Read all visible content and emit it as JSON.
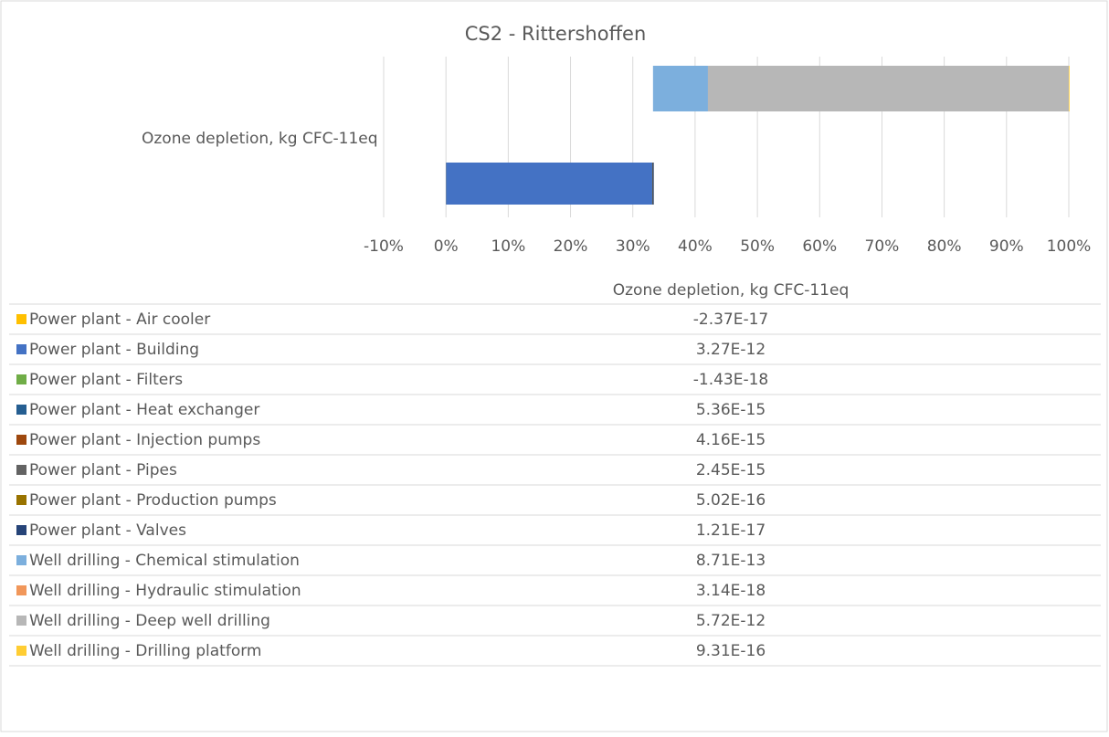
{
  "chart_data": {
    "type": "waterfall",
    "title": "CS2 - Rittershoffen",
    "categories": [
      "Ozone depletion, kg CFC-11eq"
    ],
    "xlim": [
      -10,
      100
    ],
    "xticks": [
      {
        "value": -10,
        "label": "-10%"
      },
      {
        "value": 0,
        "label": "0%"
      },
      {
        "value": 10,
        "label": "10%"
      },
      {
        "value": 20,
        "label": "20%"
      },
      {
        "value": 30,
        "label": "30%"
      },
      {
        "value": 40,
        "label": "40%"
      },
      {
        "value": 50,
        "label": "50%"
      },
      {
        "value": 60,
        "label": "60%"
      },
      {
        "value": 70,
        "label": "70%"
      },
      {
        "value": 80,
        "label": "80%"
      },
      {
        "value": 90,
        "label": "90%"
      },
      {
        "value": 100,
        "label": "100%"
      }
    ],
    "grid": true,
    "series": [
      {
        "name": "Power plant - Air cooler",
        "color": "#ffc000",
        "values": [
          -2.37e-17
        ],
        "value_labels": [
          "-2.37E-17"
        ]
      },
      {
        "name": "Power plant - Building",
        "color": "#4472c4",
        "values": [
          3.27e-12
        ],
        "value_labels": [
          "3.27E-12"
        ]
      },
      {
        "name": "Power plant - Filters",
        "color": "#70ad47",
        "values": [
          -1.43e-18
        ],
        "value_labels": [
          "-1.43E-18"
        ]
      },
      {
        "name": "Power plant - Heat exchanger",
        "color": "#255e91",
        "values": [
          5.36e-15
        ],
        "value_labels": [
          "5.36E-15"
        ]
      },
      {
        "name": "Power plant - Injection pumps",
        "color": "#9e480e",
        "values": [
          4.16e-15
        ],
        "value_labels": [
          "4.16E-15"
        ]
      },
      {
        "name": "Power plant - Pipes",
        "color": "#636363",
        "values": [
          2.45e-15
        ],
        "value_labels": [
          "2.45E-15"
        ]
      },
      {
        "name": "Power plant - Production pumps",
        "color": "#997300",
        "values": [
          5.02e-16
        ],
        "value_labels": [
          "5.02E-16"
        ]
      },
      {
        "name": "Power plant - Valves",
        "color": "#264478",
        "values": [
          1.21e-17
        ],
        "value_labels": [
          "1.21E-17"
        ]
      },
      {
        "name": "Well drilling - Chemical stimulation",
        "color": "#7cafdd",
        "values": [
          8.71e-13
        ],
        "value_labels": [
          "8.71E-13"
        ]
      },
      {
        "name": "Well drilling - Hydraulic stimulation",
        "color": "#f1975a",
        "values": [
          3.14e-18
        ],
        "value_labels": [
          "3.14E-18"
        ]
      },
      {
        "name": "Well drilling - Deep well drilling",
        "color": "#b7b7b7",
        "values": [
          5.72e-12
        ],
        "value_labels": [
          "5.72E-12"
        ]
      },
      {
        "name": "Well drilling - Drilling platform",
        "color": "#ffcd33",
        "values": [
          9.31e-16
        ],
        "value_labels": [
          "9.31E-16"
        ]
      }
    ]
  }
}
